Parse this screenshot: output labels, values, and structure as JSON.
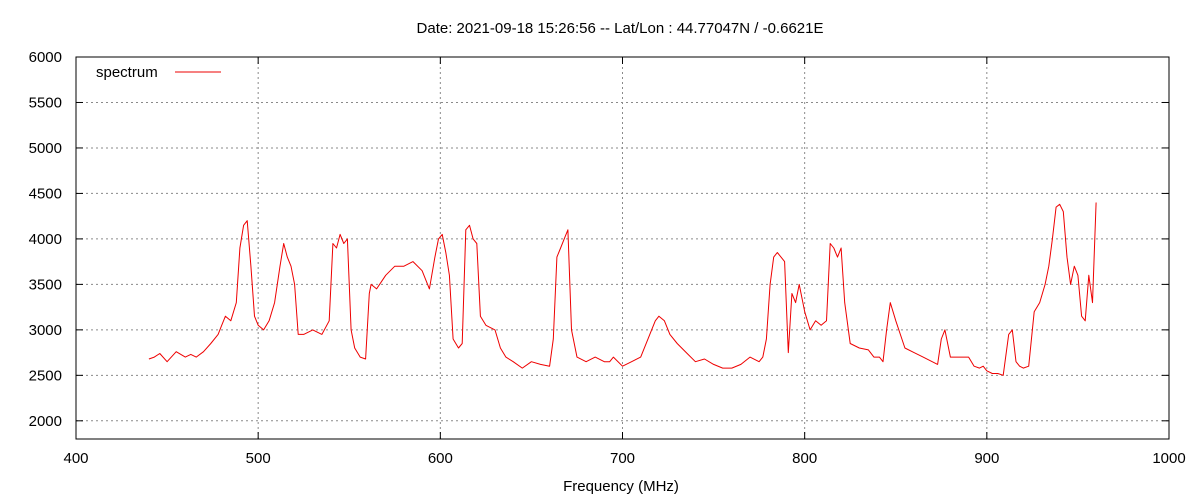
{
  "chart_data": {
    "type": "line",
    "title": "Date: 2021-09-18 15:26:56  --  Lat/Lon : 44.77047N / -0.6621E",
    "xlabel": "Frequency (MHz)",
    "ylabel": "",
    "xlim": [
      400,
      1000
    ],
    "ylim": [
      1800,
      6000
    ],
    "xticks": [
      400,
      500,
      600,
      700,
      800,
      900,
      1000
    ],
    "yticks": [
      2000,
      2500,
      3000,
      3500,
      4000,
      4500,
      5000,
      5500,
      6000
    ],
    "grid": true,
    "legend": "top-left",
    "series": [
      {
        "name": "spectrum",
        "color": "#ee0000",
        "x": [
          440,
          443,
          446,
          450,
          455,
          460,
          463,
          466,
          470,
          474,
          478,
          480,
          482,
          485,
          488,
          490,
          492,
          494,
          496,
          498,
          500,
          503,
          506,
          509,
          512,
          514,
          516,
          518,
          520,
          522,
          525,
          530,
          535,
          539,
          541,
          543,
          545,
          547,
          549,
          551,
          553,
          556,
          559,
          561,
          562,
          565,
          570,
          575,
          580,
          585,
          590,
          594,
          597,
          599,
          601,
          603,
          605,
          607,
          610,
          612,
          614,
          616,
          618,
          620,
          622,
          625,
          630,
          633,
          636,
          640,
          645,
          650,
          655,
          660,
          662,
          664,
          666,
          668,
          670,
          672,
          675,
          680,
          685,
          690,
          693,
          695,
          700,
          705,
          710,
          715,
          718,
          720,
          723,
          726,
          730,
          735,
          740,
          745,
          750,
          755,
          760,
          765,
          770,
          775,
          777,
          779,
          781,
          783,
          785,
          787,
          789,
          791,
          793,
          795,
          797,
          800,
          803,
          806,
          809,
          812,
          814,
          816,
          818,
          820,
          822,
          825,
          830,
          835,
          838,
          841,
          843,
          845,
          847,
          850,
          855,
          860,
          865,
          870,
          873,
          875,
          877,
          880,
          885,
          890,
          893,
          896,
          898,
          900,
          903,
          906,
          909,
          912,
          914,
          916,
          918,
          920,
          923,
          926,
          929,
          932,
          934,
          936,
          938,
          940,
          942,
          944,
          946,
          948,
          950,
          952,
          954,
          956,
          958,
          960
        ],
        "values": [
          2680,
          2700,
          2740,
          2650,
          2760,
          2700,
          2730,
          2700,
          2760,
          2850,
          2950,
          3050,
          3150,
          3100,
          3300,
          3900,
          4150,
          4200,
          3700,
          3150,
          3050,
          3000,
          3100,
          3300,
          3700,
          3950,
          3800,
          3700,
          3500,
          2950,
          2950,
          3000,
          2950,
          3100,
          3950,
          3900,
          4050,
          3950,
          4000,
          3000,
          2800,
          2700,
          2680,
          3400,
          3500,
          3450,
          3600,
          3700,
          3700,
          3750,
          3650,
          3450,
          3800,
          4000,
          4050,
          3850,
          3600,
          2900,
          2800,
          2850,
          4100,
          4150,
          4000,
          3950,
          3150,
          3050,
          3000,
          2800,
          2700,
          2650,
          2580,
          2650,
          2620,
          2600,
          2900,
          3800,
          3900,
          4000,
          4100,
          3000,
          2700,
          2650,
          2700,
          2650,
          2650,
          2700,
          2600,
          2650,
          2700,
          2950,
          3100,
          3150,
          3100,
          2950,
          2850,
          2750,
          2650,
          2680,
          2620,
          2580,
          2580,
          2620,
          2700,
          2650,
          2700,
          2900,
          3500,
          3800,
          3850,
          3800,
          3750,
          2750,
          3400,
          3300,
          3500,
          3200,
          3000,
          3100,
          3050,
          3100,
          3950,
          3900,
          3800,
          3900,
          3300,
          2850,
          2800,
          2780,
          2700,
          2700,
          2650,
          3000,
          3300,
          3100,
          2800,
          2750,
          2700,
          2650,
          2620,
          2900,
          3000,
          2700,
          2700,
          2700,
          2600,
          2580,
          2600,
          2550,
          2520,
          2520,
          2500,
          2950,
          3000,
          2650,
          2600,
          2580,
          2600,
          3200,
          3300,
          3500,
          3700,
          4000,
          4350,
          4380,
          4300,
          3800,
          3500,
          3700,
          3600,
          3150,
          3100,
          3600,
          3300,
          4400
        ]
      }
    ]
  }
}
